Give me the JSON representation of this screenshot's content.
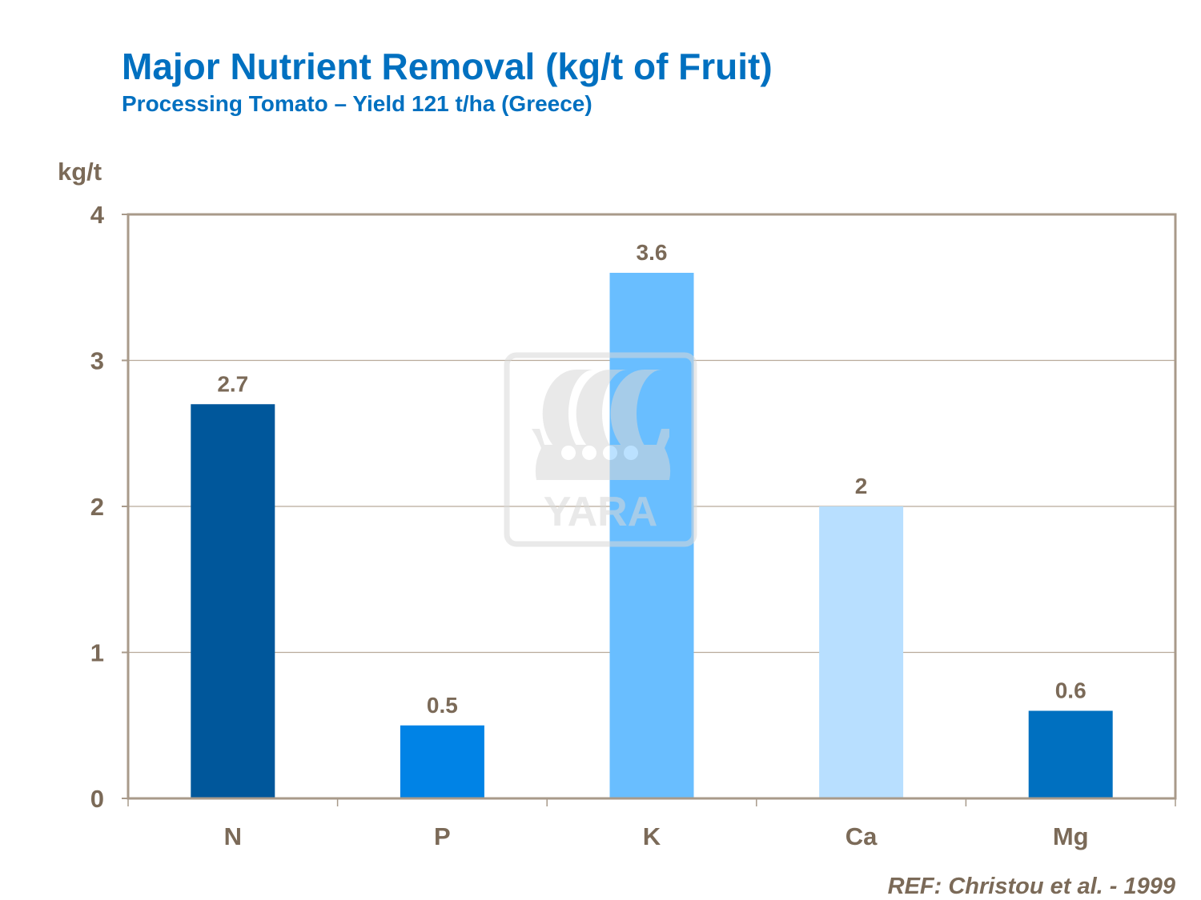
{
  "header": {
    "title": "Major Nutrient Removal (kg/t of Fruit)",
    "subtitle": "Processing Tomato – Yield 121 t/ha (Greece)"
  },
  "footer": {
    "reference": "REF: Christou et al. - 1999"
  },
  "watermark": {
    "text": "YARA",
    "color": "#e6e6e6"
  },
  "chart_data": {
    "type": "bar",
    "title": "Major Nutrient Removal (kg/t of Fruit)",
    "subtitle": "Processing Tomato – Yield 121 t/ha (Greece)",
    "xlabel": "",
    "ylabel": "kg/t",
    "categories": [
      "N",
      "P",
      "K",
      "Ca",
      "Mg"
    ],
    "values": [
      2.7,
      0.5,
      3.6,
      2,
      0.6
    ],
    "data_labels": [
      "2.7",
      "0.5",
      "3.6",
      "2",
      "0.6"
    ],
    "colors": [
      "#00579B",
      "#0083E6",
      "#69BEFF",
      "#B8DFFF",
      "#0070C0"
    ],
    "ylim": [
      0,
      4
    ],
    "yticks": [
      0,
      1,
      2,
      3,
      4
    ],
    "grid": true,
    "legend": "none"
  }
}
